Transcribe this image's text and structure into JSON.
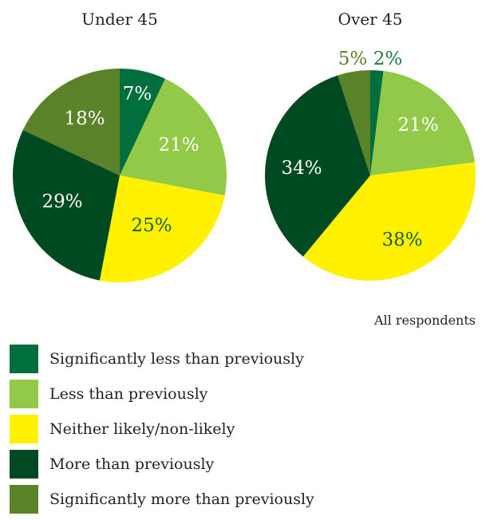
{
  "note": "All respondents",
  "colors": {
    "significantly_less": "#006f3d",
    "less": "#93c948",
    "neither": "#fff100",
    "more": "#004a22",
    "significantly_more": "#5a8228"
  },
  "legend": [
    {
      "label": "Significantly less than previously",
      "color": "#006f3d"
    },
    {
      "label": "Less than previously",
      "color": "#93c948"
    },
    {
      "label": "Neither likely/non-likely",
      "color": "#fff100"
    },
    {
      "label": "More than previously",
      "color": "#004a22"
    },
    {
      "label": "Significantly more than previously",
      "color": "#5a8228"
    }
  ],
  "chart_data": [
    {
      "type": "pie",
      "title": "Under 45",
      "categories": [
        "Significantly less than previously",
        "Less than previously",
        "Neither likely/non-likely",
        "More than previously",
        "Significantly more than previously"
      ],
      "values": [
        7,
        21,
        25,
        29,
        18
      ],
      "labels": [
        "7%",
        "21%",
        "25%",
        "29%",
        "18%"
      ],
      "legend_position": "bottom"
    },
    {
      "type": "pie",
      "title": "Over 45",
      "categories": [
        "Significantly less than previously",
        "Less than previously",
        "Neither likely/non-likely",
        "More than previously",
        "Significantly more than previously"
      ],
      "values": [
        2,
        21,
        38,
        34,
        5
      ],
      "labels": [
        "2%",
        "21%",
        "38%",
        "34%",
        "5%"
      ],
      "legend_position": "bottom"
    }
  ]
}
